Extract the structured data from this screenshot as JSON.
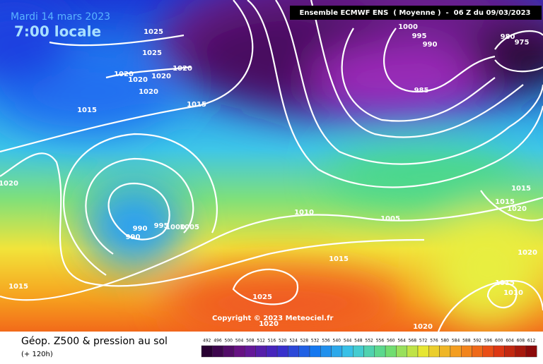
{
  "header": {
    "date": "Mardi 14 mars 2023",
    "time": "7:00 locale",
    "model": "Ensemble ECMWF ENS  ( Moyenne )  -  06 Z du 09/03/2023"
  },
  "copyright": "Copyright © 2023 Meteociel.fr",
  "isobar_labels": [
    1025,
    1025,
    1020,
    1020,
    1020,
    1020,
    1020,
    1015,
    1015,
    1000,
    995,
    990,
    980,
    975,
    985,
    1020,
    1015,
    1015,
    1020,
    1010,
    1005,
    990,
    995,
    1000,
    1005,
    990,
    1020,
    1015,
    1015,
    1015,
    1010,
    1025,
    1020,
    1020
  ],
  "footer": {
    "title": "Géop. Z500 & pression au sol",
    "subtitle": "(+ 120h)"
  },
  "colorbar": {
    "labels": [
      492,
      496,
      500,
      504,
      508,
      512,
      516,
      520,
      524,
      528,
      532,
      536,
      540,
      544,
      548,
      552,
      556,
      560,
      564,
      568,
      572,
      576,
      580,
      584,
      588,
      592,
      596,
      600,
      604,
      608,
      612
    ]
  }
}
